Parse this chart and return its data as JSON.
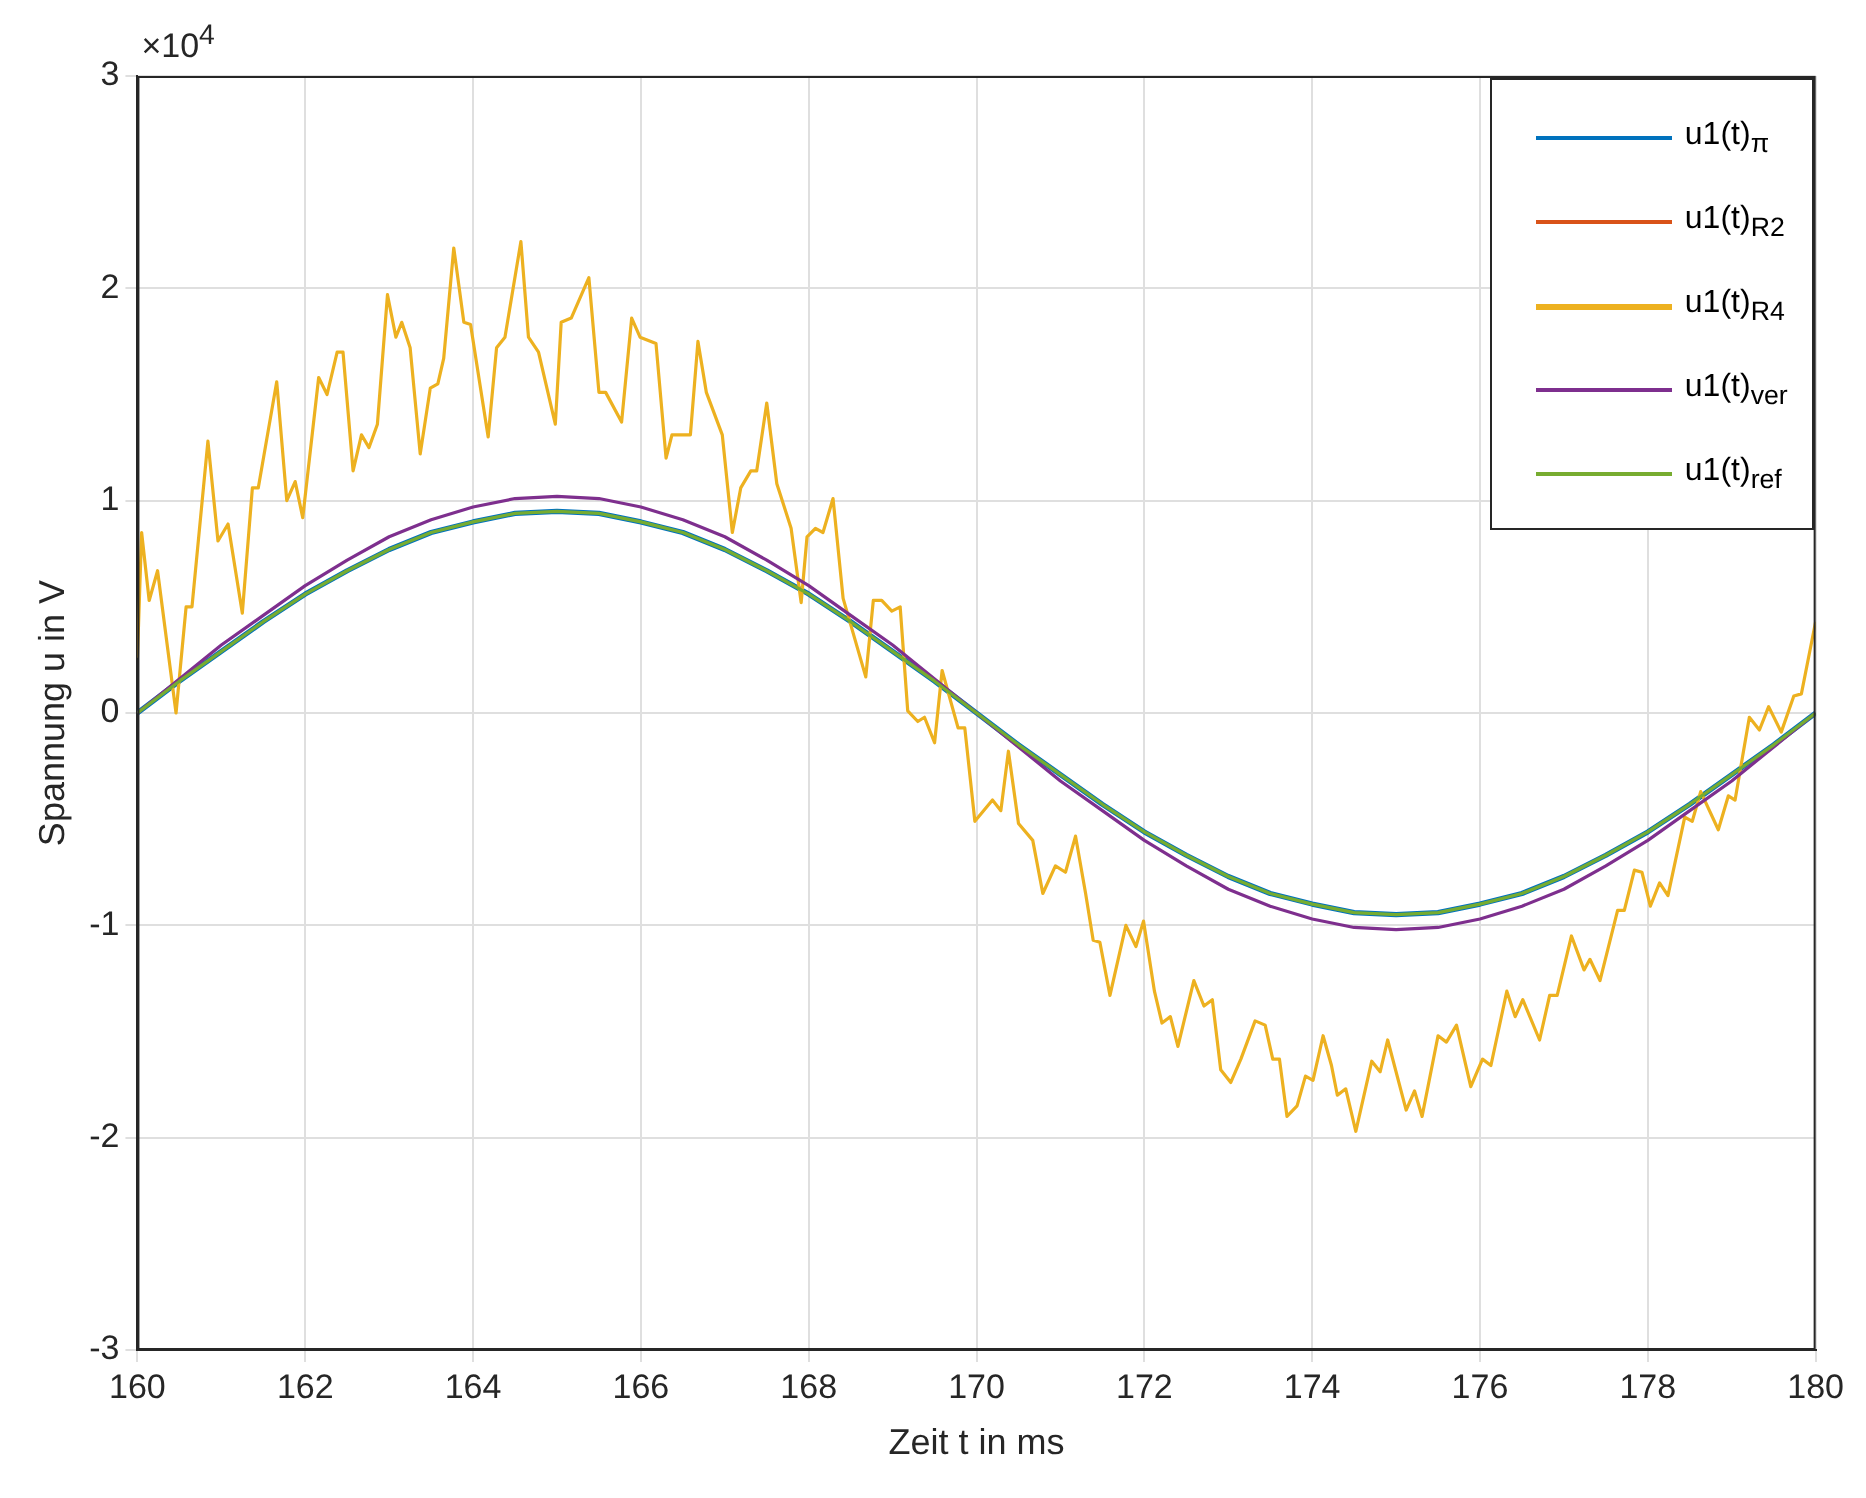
{
  "chart_data": {
    "type": "line",
    "xlabel": "Zeit t in ms",
    "ylabel": "Spannung u in V",
    "annotations": [
      "×10$^{4}$"
    ],
    "x": [
      160,
      160.5,
      161,
      161.5,
      162,
      162.5,
      163,
      163.5,
      164,
      164.5,
      165,
      165.5,
      166,
      166.5,
      167,
      167.5,
      168,
      168.5,
      169,
      169.5,
      170,
      170.5,
      171,
      171.5,
      172,
      172.5,
      173,
      173.5,
      174,
      174.5,
      175,
      175.5,
      176,
      176.5,
      177,
      177.5,
      178,
      178.5,
      179,
      179.5,
      180
    ],
    "series": [
      {
        "name": "u1(t)$_{π}$",
        "color": "#0072bd",
        "values": [
          0,
          0.15,
          0.29,
          0.43,
          0.56,
          0.67,
          0.77,
          0.85,
          0.9,
          0.94,
          0.95,
          0.94,
          0.9,
          0.85,
          0.77,
          0.67,
          0.56,
          0.43,
          0.29,
          0.15,
          0,
          -0.15,
          -0.29,
          -0.43,
          -0.56,
          -0.67,
          -0.77,
          -0.85,
          -0.9,
          -0.94,
          -0.95,
          -0.94,
          -0.9,
          -0.85,
          -0.77,
          -0.67,
          -0.56,
          -0.43,
          -0.29,
          -0.15,
          0
        ]
      },
      {
        "name": "u1(t)$_{R2}$",
        "color": "#d95319",
        "values": [
          null,
          null,
          null,
          null,
          null,
          null,
          null,
          null,
          null,
          null,
          null,
          null,
          null,
          null,
          null,
          null,
          null,
          null,
          null,
          null,
          null,
          null,
          null,
          null,
          null,
          null,
          null,
          null,
          null,
          null,
          null,
          null,
          null,
          null,
          null,
          null,
          null,
          null,
          null,
          null,
          null
        ]
      },
      {
        "name": "u1(t)$_{R4}$",
        "color": "#edb120",
        "x": [
          160,
          160.05,
          160.14,
          160.24,
          160.46,
          160.58,
          160.65,
          160.84,
          160.96,
          161.08,
          161.25,
          161.37,
          161.44,
          161.66,
          161.78,
          161.88,
          161.97,
          162.16,
          162.26,
          162.38,
          162.45,
          162.57,
          162.67,
          162.76,
          162.86,
          162.98,
          163.08,
          163.15,
          163.25,
          163.37,
          163.49,
          163.58,
          163.65,
          163.77,
          163.89,
          163.97,
          164.18,
          164.28,
          164.38,
          164.57,
          164.66,
          164.78,
          164.98,
          165.05,
          165.17,
          165.38,
          165.5,
          165.58,
          165.77,
          165.89,
          165.99,
          166.18,
          166.3,
          166.37,
          166.59,
          166.68,
          166.78,
          166.97,
          167.09,
          167.19,
          167.31,
          167.38,
          167.5,
          167.62,
          167.79,
          167.91,
          167.98,
          168.08,
          168.17,
          168.29,
          168.41,
          168.68,
          168.77,
          168.87,
          168.99,
          169.09,
          169.18,
          169.3,
          169.38,
          169.5,
          169.59,
          169.78,
          169.86,
          169.98,
          170.19,
          170.29,
          170.38,
          170.5,
          170.67,
          170.79,
          170.94,
          171.06,
          171.18,
          171.3,
          171.39,
          171.47,
          171.59,
          171.78,
          171.9,
          171.99,
          172.12,
          172.21,
          172.31,
          172.4,
          172.59,
          172.71,
          172.81,
          172.91,
          173.03,
          173.15,
          173.32,
          173.44,
          173.53,
          173.61,
          173.7,
          173.82,
          173.92,
          174.01,
          174.13,
          174.23,
          174.3,
          174.4,
          174.52,
          174.71,
          174.81,
          174.9,
          175.12,
          175.22,
          175.31,
          175.5,
          175.6,
          175.72,
          175.89,
          176.03,
          176.13,
          176.32,
          176.42,
          176.51,
          176.71,
          176.83,
          176.92,
          177.09,
          177.24,
          177.31,
          177.43,
          177.64,
          177.72,
          177.84,
          177.93,
          178.03,
          178.14,
          178.24,
          178.44,
          178.53,
          178.63,
          178.84,
          178.96,
          179.04,
          179.21,
          179.33,
          179.44,
          179.59,
          179.74,
          179.83,
          180
        ],
        "values": [
          0.26,
          0.85,
          0.53,
          0.67,
          0,
          0.5,
          0.5,
          1.28,
          0.81,
          0.89,
          0.47,
          1.06,
          1.06,
          1.56,
          1,
          1.09,
          0.92,
          1.58,
          1.5,
          1.7,
          1.7,
          1.14,
          1.31,
          1.25,
          1.36,
          1.97,
          1.77,
          1.84,
          1.72,
          1.22,
          1.53,
          1.55,
          1.67,
          2.19,
          1.84,
          1.83,
          1.3,
          1.72,
          1.77,
          2.22,
          1.77,
          1.7,
          1.36,
          1.84,
          1.86,
          2.05,
          1.51,
          1.51,
          1.37,
          1.86,
          1.77,
          1.74,
          1.2,
          1.31,
          1.31,
          1.75,
          1.51,
          1.31,
          0.85,
          1.06,
          1.14,
          1.14,
          1.46,
          1.08,
          0.87,
          0.52,
          0.83,
          0.87,
          0.85,
          1.01,
          0.54,
          0.17,
          0.53,
          0.53,
          0.48,
          0.5,
          0.01,
          -0.04,
          -0.02,
          -0.14,
          0.2,
          -0.07,
          -0.07,
          -0.51,
          -0.41,
          -0.46,
          -0.18,
          -0.52,
          -0.6,
          -0.85,
          -0.72,
          -0.75,
          -0.58,
          -0.85,
          -1.07,
          -1.08,
          -1.33,
          -1,
          -1.1,
          -0.98,
          -1.31,
          -1.46,
          -1.43,
          -1.57,
          -1.26,
          -1.38,
          -1.35,
          -1.68,
          -1.74,
          -1.63,
          -1.45,
          -1.47,
          -1.63,
          -1.63,
          -1.9,
          -1.85,
          -1.71,
          -1.73,
          -1.52,
          -1.66,
          -1.8,
          -1.77,
          -1.97,
          -1.64,
          -1.69,
          -1.54,
          -1.87,
          -1.78,
          -1.9,
          -1.52,
          -1.55,
          -1.47,
          -1.76,
          -1.63,
          -1.66,
          -1.31,
          -1.43,
          -1.35,
          -1.54,
          -1.33,
          -1.33,
          -1.05,
          -1.21,
          -1.16,
          -1.26,
          -0.93,
          -0.93,
          -0.74,
          -0.75,
          -0.91,
          -0.8,
          -0.86,
          -0.49,
          -0.51,
          -0.37,
          -0.55,
          -0.39,
          -0.41,
          -0.02,
          -0.08,
          0.03,
          -0.09,
          0.08,
          0.09,
          0.43
        ]
      },
      {
        "name": "u1(t)$_{ver}$",
        "color": "#7e2f8e",
        "values": [
          0,
          0.16,
          0.32,
          0.46,
          0.6,
          0.72,
          0.83,
          0.91,
          0.97,
          1.01,
          1.02,
          1.01,
          0.97,
          0.91,
          0.83,
          0.72,
          0.6,
          0.46,
          0.32,
          0.16,
          0,
          -0.16,
          -0.32,
          -0.46,
          -0.6,
          -0.72,
          -0.83,
          -0.91,
          -0.97,
          -1.01,
          -1.02,
          -1.01,
          -0.97,
          -0.91,
          -0.83,
          -0.72,
          -0.6,
          -0.46,
          -0.32,
          -0.16,
          0
        ]
      },
      {
        "name": "u1(t)$_{ref}$",
        "color": "#77ac30",
        "values": [
          0,
          0.15,
          0.29,
          0.43,
          0.56,
          0.67,
          0.77,
          0.85,
          0.9,
          0.94,
          0.95,
          0.94,
          0.9,
          0.85,
          0.77,
          0.67,
          0.56,
          0.43,
          0.29,
          0.15,
          0,
          -0.15,
          -0.29,
          -0.43,
          -0.56,
          -0.67,
          -0.77,
          -0.85,
          -0.9,
          -0.94,
          -0.95,
          -0.94,
          -0.9,
          -0.85,
          -0.77,
          -0.67,
          -0.56,
          -0.43,
          -0.29,
          -0.15,
          0
        ]
      }
    ],
    "xlim": [
      160,
      180
    ],
    "ylim": [
      -3,
      3
    ],
    "xticks": [
      160,
      162,
      164,
      166,
      168,
      170,
      172,
      174,
      176,
      178,
      180
    ],
    "yticks": [
      -3,
      -2,
      -1,
      0,
      1,
      2,
      3
    ],
    "grid": true,
    "legend": "top right",
    "marker": "none",
    "line_style": "solid"
  }
}
